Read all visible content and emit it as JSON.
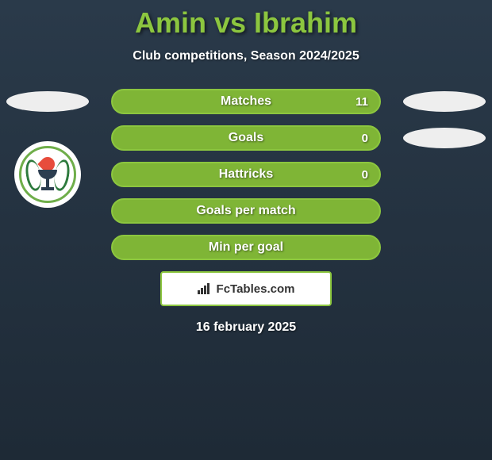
{
  "title": "Amin vs Ibrahim",
  "subtitle": "Club competitions, Season 2024/2025",
  "colors": {
    "accent": "#8cc63f",
    "pill_fill": "#7fb536",
    "background_top": "#2a3a4a",
    "background_bottom": "#1e2a36",
    "text": "#ffffff"
  },
  "stats": [
    {
      "label": "Matches",
      "right_value": "11",
      "show_left_ellipse": true,
      "show_right_ellipse": true
    },
    {
      "label": "Goals",
      "right_value": "0",
      "show_left_ellipse": false,
      "show_right_ellipse": true
    },
    {
      "label": "Hattricks",
      "right_value": "0",
      "show_left_ellipse": false,
      "show_right_ellipse": false
    },
    {
      "label": "Goals per match",
      "right_value": "",
      "show_left_ellipse": false,
      "show_right_ellipse": false
    },
    {
      "label": "Min per goal",
      "right_value": "",
      "show_left_ellipse": false,
      "show_right_ellipse": false
    }
  ],
  "footer_brand": "FcTables.com",
  "date": "16 february 2025"
}
